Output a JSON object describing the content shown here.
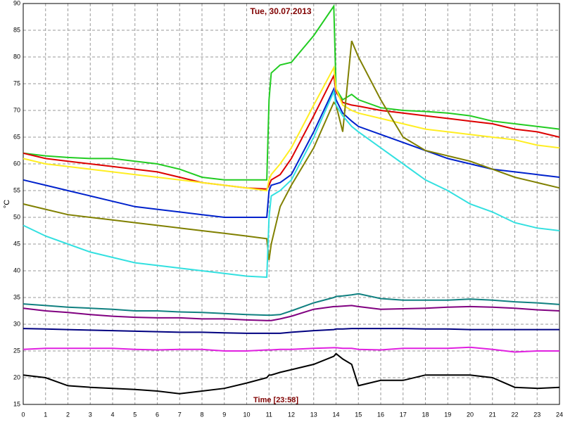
{
  "chart_data": {
    "type": "line",
    "title": "Tue, 30.07.2013",
    "xlabel": "Time [23:58]",
    "ylabel": "°C",
    "x": [
      0,
      1,
      2,
      3,
      4,
      5,
      6,
      7,
      8,
      9,
      10,
      10.9,
      11,
      11.1,
      11.5,
      12,
      13,
      13.9,
      14,
      14.3,
      14.7,
      15,
      16,
      17,
      18,
      19,
      20,
      21,
      22,
      23,
      24
    ],
    "xlim": [
      0,
      24
    ],
    "xticks": [
      0,
      1,
      2,
      3,
      4,
      5,
      6,
      7,
      8,
      9,
      10,
      11,
      12,
      13,
      14,
      15,
      16,
      17,
      18,
      19,
      20,
      21,
      22,
      23,
      24
    ],
    "ylim": [
      15,
      90
    ],
    "yticks": [
      15,
      20,
      25,
      30,
      35,
      40,
      45,
      50,
      55,
      60,
      65,
      70,
      75,
      80,
      85,
      90
    ],
    "grid": true,
    "series": [
      {
        "color": "#22cc22",
        "values": [
          62,
          61.5,
          61.2,
          61,
          61,
          60.5,
          60,
          59,
          57.5,
          57,
          57,
          57,
          72,
          77,
          78.5,
          79,
          84,
          89.5,
          74,
          72,
          73,
          72,
          70.5,
          70,
          69.8,
          69.5,
          69,
          68,
          67.5,
          67,
          66.5
        ]
      },
      {
        "color": "#dd0000",
        "values": [
          62,
          61,
          60.5,
          60,
          59.5,
          59,
          58.5,
          57.5,
          56.5,
          56,
          55.5,
          55.3,
          56,
          57,
          58,
          61,
          69,
          76.5,
          73.5,
          71.5,
          71,
          70.8,
          70,
          69.5,
          69,
          68.5,
          68,
          67.5,
          66.5,
          66,
          65
        ]
      },
      {
        "color": "#ffee22",
        "values": [
          61,
          60,
          59.5,
          59,
          58.5,
          58,
          57.5,
          57,
          56.5,
          56,
          55.5,
          55,
          57,
          58,
          60,
          63,
          71,
          78,
          74,
          71,
          70,
          69.5,
          68.5,
          67.5,
          66.5,
          66,
          65.5,
          65,
          64.5,
          63.5,
          63
        ]
      },
      {
        "color": "#0022cc",
        "values": [
          57,
          56,
          55,
          54,
          53,
          52,
          51.5,
          51,
          50.5,
          50,
          50,
          50,
          55,
          56,
          56.5,
          58,
          66,
          74,
          72,
          69.5,
          68,
          67,
          65.5,
          64,
          62.5,
          61,
          60,
          59,
          58.5,
          58,
          57.5
        ]
      },
      {
        "color": "#808000",
        "values": [
          52.5,
          51.5,
          50.5,
          50,
          49.5,
          49,
          48.5,
          48,
          47.5,
          47,
          46.5,
          46,
          42,
          45,
          52,
          56,
          63,
          71.5,
          71,
          66,
          83,
          80,
          72,
          65,
          62.5,
          61.5,
          60.5,
          59,
          57.5,
          56.5,
          55.5
        ]
      },
      {
        "color": "#33e0e0",
        "values": [
          48.5,
          46.5,
          45,
          43.5,
          42.5,
          41.5,
          41,
          40.5,
          40,
          39.5,
          39,
          38.8,
          50,
          54,
          55,
          57,
          65,
          73.5,
          71,
          69,
          67,
          66,
          63,
          60,
          57,
          55,
          52.5,
          51,
          49,
          48,
          47.5
        ]
      },
      {
        "color": "#108080",
        "values": [
          33.8,
          33.5,
          33.2,
          33,
          32.8,
          32.5,
          32.5,
          32.3,
          32.2,
          32,
          31.8,
          31.7,
          31.7,
          31.7,
          31.8,
          32.5,
          34,
          35,
          35.2,
          35.3,
          35.5,
          35.7,
          34.8,
          34.5,
          34.5,
          34.5,
          34.7,
          34.5,
          34.2,
          34,
          33.7
        ]
      },
      {
        "color": "#800080",
        "values": [
          33,
          32.5,
          32.2,
          31.8,
          31.5,
          31.3,
          31.2,
          31.2,
          31,
          31,
          30.8,
          30.7,
          30.7,
          30.7,
          31,
          31.5,
          32.8,
          33.3,
          33.3,
          33.4,
          33.5,
          33.3,
          32.8,
          32.9,
          33,
          33.2,
          33.3,
          33.2,
          33,
          32.7,
          32.5
        ]
      },
      {
        "color": "#000080",
        "values": [
          29.2,
          29.1,
          29,
          28.9,
          28.8,
          28.7,
          28.6,
          28.5,
          28.5,
          28.4,
          28.3,
          28.3,
          28.3,
          28.3,
          28.3,
          28.5,
          28.8,
          29,
          29.1,
          29.1,
          29.2,
          29.2,
          29.2,
          29.2,
          29.1,
          29.1,
          29,
          29,
          29,
          29,
          29
        ]
      },
      {
        "color": "#e020e0",
        "values": [
          25.3,
          25.5,
          25.5,
          25.5,
          25.5,
          25.3,
          25.2,
          25.3,
          25.3,
          25,
          25,
          25.2,
          25.2,
          25.2,
          25.3,
          25.3,
          25.5,
          25.6,
          25.6,
          25.5,
          25.5,
          25.3,
          25.2,
          25.5,
          25.5,
          25.5,
          25.7,
          25.3,
          24.8,
          25,
          25
        ]
      },
      {
        "color": "#000000",
        "values": [
          20.5,
          20,
          18.5,
          18.2,
          18,
          17.8,
          17.5,
          17,
          17.5,
          18,
          19,
          20,
          20.5,
          20.5,
          21,
          21.5,
          22.5,
          24,
          24.5,
          23.5,
          22.5,
          18.5,
          19.5,
          19.5,
          20.5,
          20.5,
          20.5,
          20,
          18.2,
          18,
          18.2
        ]
      }
    ]
  }
}
